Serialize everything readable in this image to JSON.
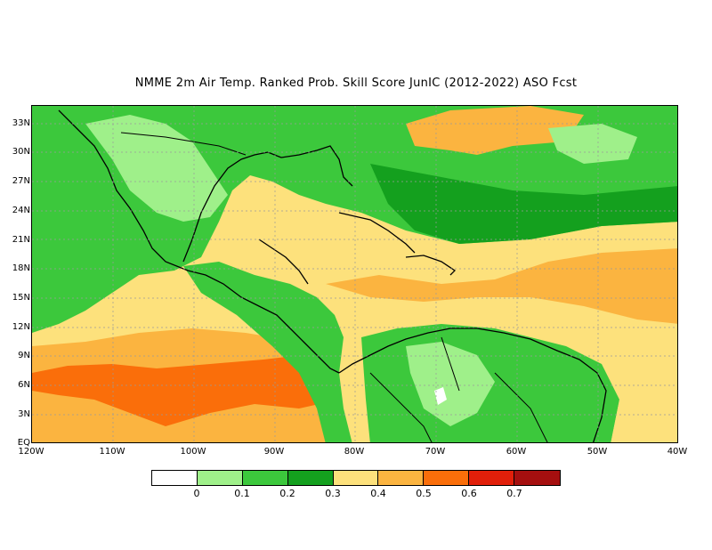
{
  "title": "NMME  2m Air Temp. Ranked Prob. Skill Score JunIC (2012-2022) ASO Fcst",
  "y_axis": {
    "labels": [
      "EQ",
      "3N",
      "6N",
      "9N",
      "12N",
      "15N",
      "18N",
      "21N",
      "24N",
      "27N",
      "30N",
      "33N"
    ]
  },
  "x_axis": {
    "labels": [
      "120W",
      "110W",
      "100W",
      "90W",
      "80W",
      "70W",
      "60W",
      "50W",
      "40W"
    ]
  },
  "colorbar": {
    "colors": [
      "#ffffff",
      "#9ff08a",
      "#3cc83c",
      "#14a01e",
      "#fde17c",
      "#fbb440",
      "#fa6e0a",
      "#e11f0a",
      "#a50f0f"
    ],
    "labels": [
      "0",
      "0.1",
      "0.2",
      "0.3",
      "0.4",
      "0.5",
      "0.6",
      "0.7"
    ]
  },
  "map": {
    "region": "Central America and Caribbean",
    "lon_range": [
      "120W",
      "40W"
    ],
    "lat_range": [
      "EQ",
      "35N"
    ],
    "grid_lines": "dashed"
  }
}
